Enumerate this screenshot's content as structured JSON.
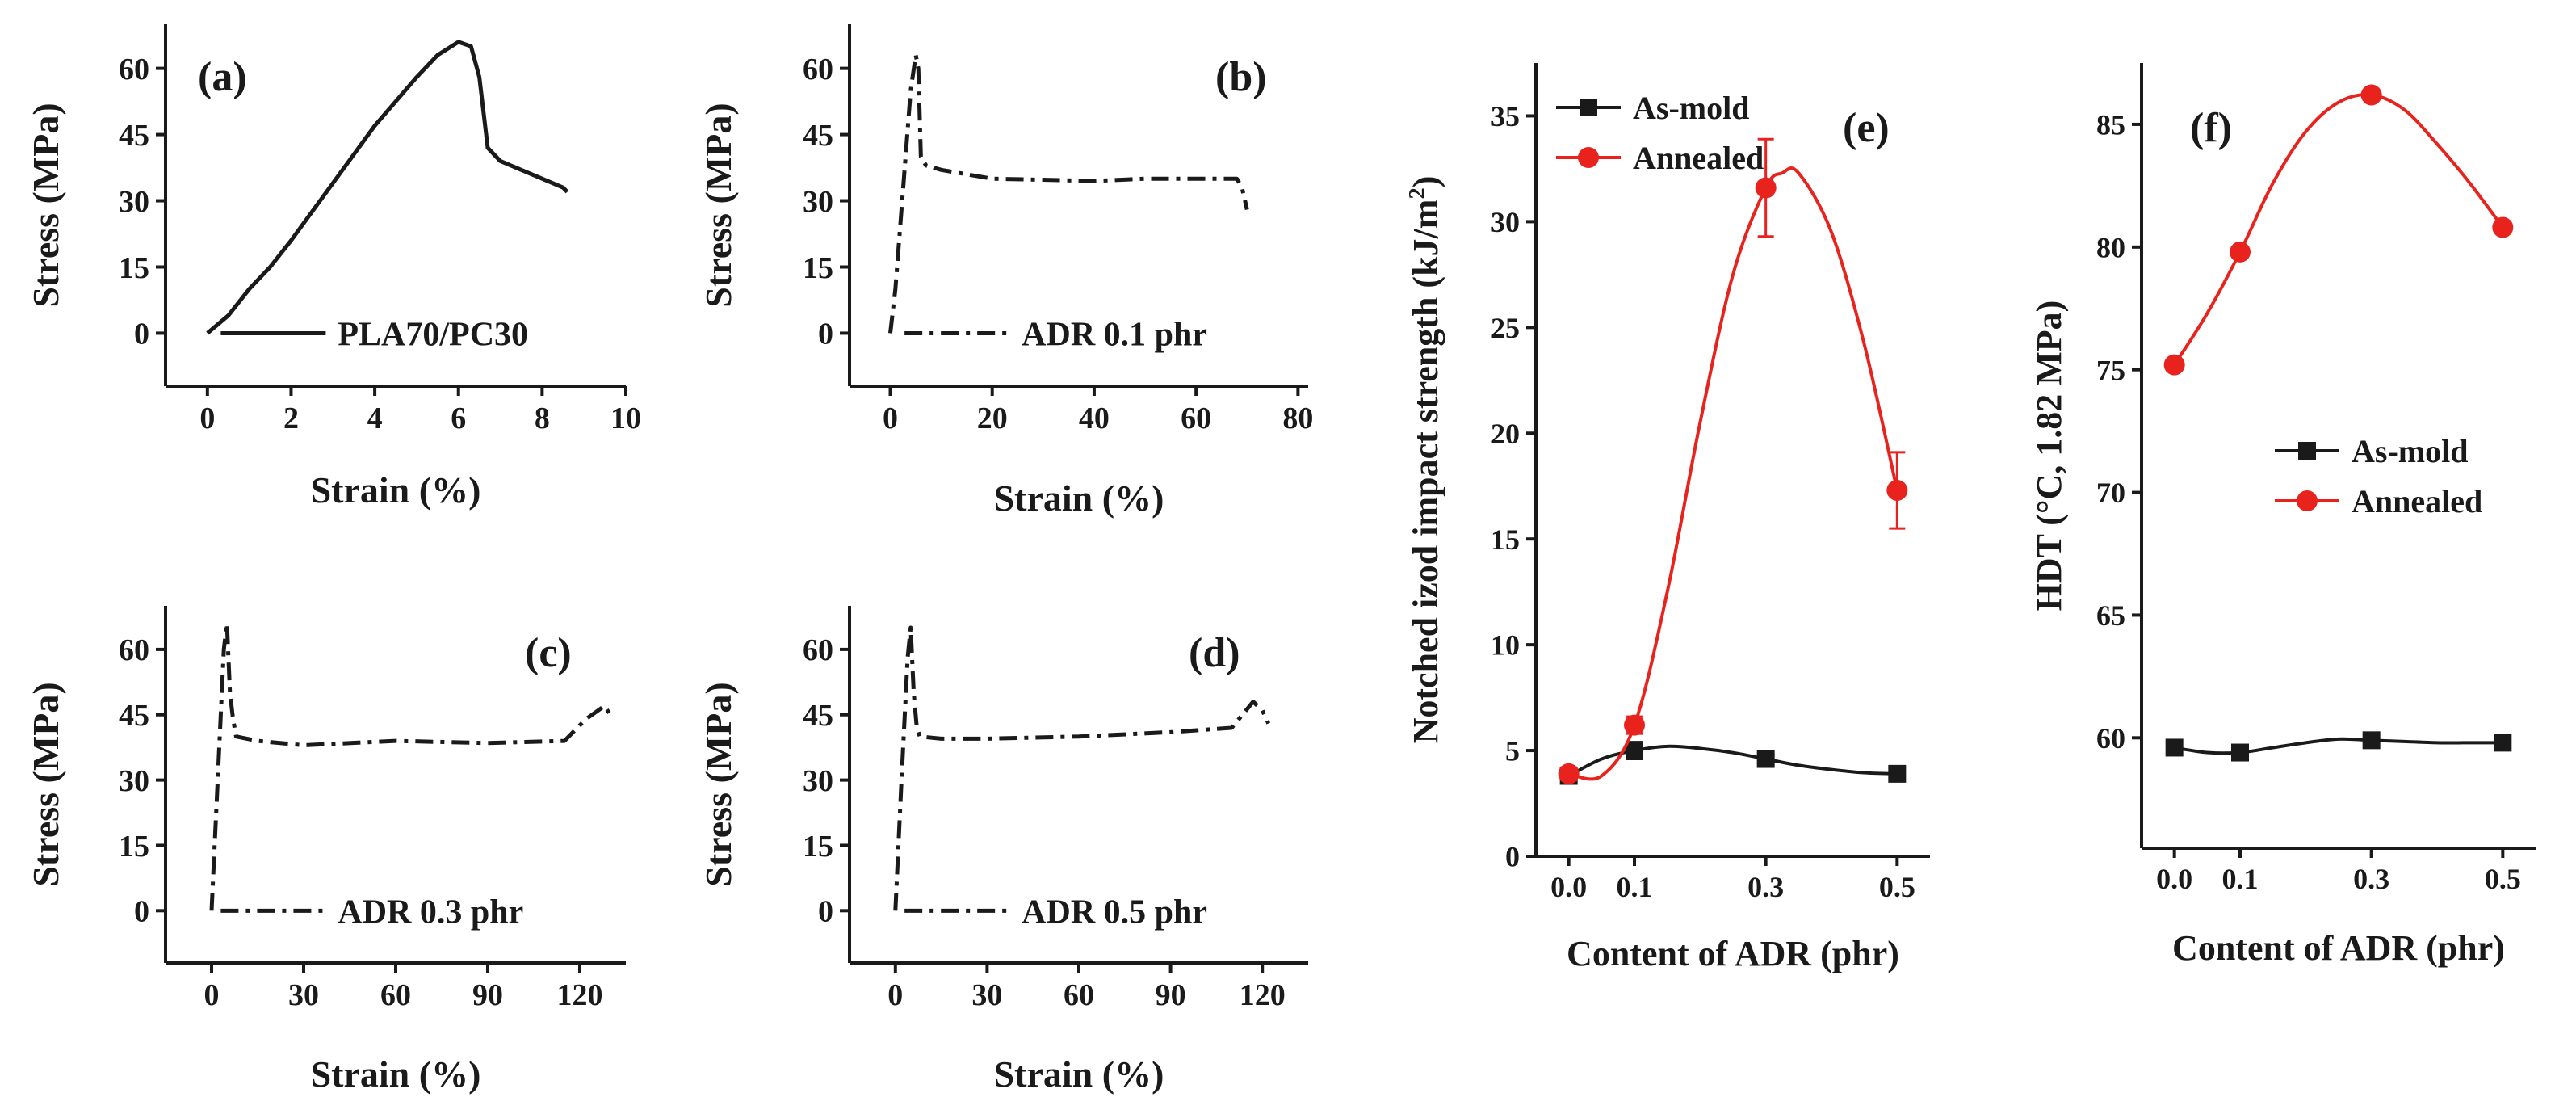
{
  "chart_data": [
    {
      "id": "a",
      "type": "line",
      "panel_label": "(a)",
      "xlabel": "Strain (%)",
      "ylabel": "Stress (MPa)",
      "xlim": [
        -1,
        10
      ],
      "ylim": [
        -12,
        70
      ],
      "xticks": [
        0,
        2,
        4,
        6,
        8,
        10
      ],
      "yticks": [
        0,
        15,
        30,
        45,
        60
      ],
      "series": [
        {
          "name": "PLA70/PC30",
          "style": "solid",
          "x": [
            0,
            0.5,
            1,
            1.5,
            2,
            3,
            4,
            5,
            5.5,
            6,
            6.3,
            6.5,
            6.7,
            7,
            7.5,
            8,
            8.5,
            8.6
          ],
          "y": [
            0,
            4,
            10,
            15,
            21,
            34,
            47,
            58,
            63,
            66,
            65,
            58,
            42,
            39,
            37,
            35,
            33,
            32
          ]
        }
      ]
    },
    {
      "id": "b",
      "type": "line",
      "panel_label": "(b)",
      "xlabel": "Strain (%)",
      "ylabel": "Stress (MPa)",
      "xlim": [
        -8,
        82
      ],
      "ylim": [
        -12,
        70
      ],
      "xticks": [
        0,
        20,
        40,
        60,
        80
      ],
      "yticks": [
        0,
        15,
        30,
        45,
        60
      ],
      "series": [
        {
          "name": "ADR 0.1 phr",
          "style": "dashdot",
          "x": [
            0,
            1,
            2,
            3,
            4,
            5,
            5.5,
            6,
            7,
            10,
            20,
            40,
            50,
            60,
            68,
            69,
            70
          ],
          "y": [
            0,
            10,
            25,
            40,
            55,
            63,
            60,
            40,
            38,
            37,
            35,
            34.5,
            35,
            35,
            35,
            33,
            28
          ]
        }
      ]
    },
    {
      "id": "c",
      "type": "line",
      "panel_label": "(c)",
      "xlabel": "Strain (%)",
      "ylabel": "Stress (MPa)",
      "xlim": [
        -15,
        135
      ],
      "ylim": [
        -12,
        70
      ],
      "xticks": [
        0,
        30,
        60,
        90,
        120
      ],
      "yticks": [
        0,
        15,
        30,
        45,
        60
      ],
      "series": [
        {
          "name": "ADR 0.3 phr",
          "style": "dashdot",
          "x": [
            0,
            2,
            4,
            5,
            6,
            7,
            8,
            15,
            30,
            60,
            90,
            115,
            122,
            128,
            130
          ],
          "y": [
            0,
            30,
            60,
            66,
            50,
            44,
            40,
            39,
            38,
            39,
            38.5,
            39,
            44,
            47,
            45
          ]
        }
      ]
    },
    {
      "id": "d",
      "type": "line",
      "panel_label": "(d)",
      "xlabel": "Strain (%)",
      "ylabel": "Stress (MPa)",
      "xlim": [
        -15,
        135
      ],
      "ylim": [
        -12,
        70
      ],
      "xticks": [
        0,
        30,
        60,
        90,
        120
      ],
      "yticks": [
        0,
        15,
        30,
        45,
        60
      ],
      "series": [
        {
          "name": "ADR 0.5 phr",
          "style": "dashdot",
          "x": [
            0,
            2,
            4,
            5,
            6,
            7,
            8,
            15,
            30,
            60,
            90,
            110,
            117,
            120,
            122
          ],
          "y": [
            0,
            30,
            58,
            65,
            50,
            42,
            40,
            39.5,
            39.5,
            40,
            41,
            42,
            48,
            46,
            43
          ]
        }
      ]
    },
    {
      "id": "e",
      "type": "line",
      "panel_label": "(e)",
      "xlabel": "Content of ADR (phr)",
      "ylabel": "Notched izod impact strength (kJ/m",
      "ylabel_superscript": "2",
      "ylabel_suffix": ")",
      "x": [
        0.0,
        0.1,
        0.3,
        0.5
      ],
      "xlim": [
        -0.05,
        0.55
      ],
      "ylim": [
        0,
        37.5
      ],
      "xticks": [
        "0.0",
        "0.1",
        "0.3",
        "0.5"
      ],
      "yticks": [
        0,
        5,
        10,
        15,
        20,
        25,
        30,
        35
      ],
      "legend_position": "top-left",
      "series": [
        {
          "name": "As-mold",
          "color": "#1a1a1a",
          "marker": "square",
          "values": [
            3.8,
            5.0,
            4.6,
            3.9
          ],
          "errors": [
            0.3,
            0.4,
            0.3,
            0.3
          ],
          "fit": {
            "x": [
              0,
              0.05,
              0.1,
              0.15,
              0.2,
              0.25,
              0.3,
              0.35,
              0.4,
              0.45,
              0.5
            ],
            "y": [
              3.8,
              4.6,
              5.0,
              5.2,
              5.1,
              4.9,
              4.6,
              4.3,
              4.1,
              3.95,
              3.9
            ]
          }
        },
        {
          "name": "Annealed",
          "color": "#e8231e",
          "marker": "circle",
          "values": [
            3.9,
            6.2,
            31.6,
            17.3
          ],
          "errors": [
            0.3,
            0.4,
            2.3,
            1.8
          ],
          "fit": {
            "x": [
              0,
              0.05,
              0.1,
              0.15,
              0.2,
              0.25,
              0.3,
              0.325,
              0.35,
              0.4,
              0.45,
              0.5
            ],
            "y": [
              3.9,
              3.8,
              6.2,
              12.5,
              20.5,
              27.5,
              31.6,
              32.3,
              32.3,
              29.5,
              24.2,
              17.3
            ]
          }
        }
      ]
    },
    {
      "id": "f",
      "type": "line",
      "panel_label": "(f)",
      "xlabel": "Content of ADR (phr)",
      "ylabel": "HDT (°C, 1.82 MPa)",
      "x": [
        0.0,
        0.1,
        0.3,
        0.5
      ],
      "xlim": [
        -0.05,
        0.55
      ],
      "ylim": [
        55.5,
        87.5
      ],
      "xticks": [
        "0.0",
        "0.1",
        "0.3",
        "0.5"
      ],
      "yticks": [
        60,
        65,
        70,
        75,
        80,
        85
      ],
      "legend_position": "center-right",
      "series": [
        {
          "name": "As-mold",
          "color": "#1a1a1a",
          "marker": "square",
          "values": [
            59.6,
            59.4,
            59.9,
            59.8
          ],
          "fit": {
            "x": [
              0,
              0.05,
              0.1,
              0.15,
              0.2,
              0.25,
              0.3,
              0.35,
              0.4,
              0.45,
              0.5
            ],
            "y": [
              59.6,
              59.4,
              59.4,
              59.6,
              59.8,
              59.95,
              59.9,
              59.85,
              59.8,
              59.8,
              59.8
            ]
          }
        },
        {
          "name": "Annealed",
          "color": "#e8231e",
          "marker": "circle",
          "values": [
            75.2,
            79.8,
            86.2,
            80.8
          ],
          "fit": {
            "x": [
              0,
              0.05,
              0.1,
              0.15,
              0.2,
              0.25,
              0.3,
              0.35,
              0.4,
              0.45,
              0.5
            ],
            "y": [
              75.2,
              77.3,
              79.8,
              82.6,
              84.7,
              85.9,
              86.2,
              85.6,
              84.2,
              82.6,
              80.8
            ]
          }
        }
      ]
    }
  ]
}
